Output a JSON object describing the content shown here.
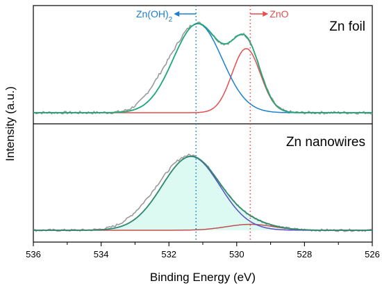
{
  "chart_data": {
    "type": "line",
    "xlabel": "Binding Energy (eV)",
    "ylabel": "Intensity (a.u.)",
    "xlim": [
      536,
      526
    ],
    "x_reversed": true,
    "x_ticks": [
      "536",
      "534",
      "532",
      "530",
      "528",
      "526"
    ],
    "y_ticks_shown": false,
    "grid": false,
    "colors": {
      "raw": "#9a9a9a",
      "envelope": "#1faa78",
      "zn_oh2": "#1a7fd0",
      "zno": "#e84c4c",
      "nanowire_peak": "#5a4fc8",
      "nanowire_minor": "#c0504d",
      "nanowire_fill": "#c5f5e9",
      "nanowire_envelope": "#2e8b6e"
    },
    "reference_lines": [
      {
        "label": "Zn(OH)",
        "subscript": "2",
        "x": 531.2,
        "color": "#1a7fd0",
        "arrow": "left"
      },
      {
        "label": "ZnO",
        "x": 529.6,
        "color": "#e84c4c",
        "arrow": "right"
      }
    ],
    "panels": [
      {
        "title": "Zn foil",
        "components": [
          {
            "role": "Zn(OH)2 component",
            "center": 531.15,
            "height": 1.0,
            "sigma": 0.72
          },
          {
            "role": "ZnO component",
            "center": 529.72,
            "height": 0.72,
            "sigma": 0.42
          }
        ],
        "baseline": 0.0,
        "raw_shoulder": {
          "center": 532.3,
          "height": 0.14,
          "sigma": 0.45
        }
      },
      {
        "title": "Zn nanowires",
        "components": [
          {
            "role": "Zn(OH)2 component",
            "center": 531.35,
            "height": 1.0,
            "sigma": 0.85
          },
          {
            "role": "ZnO component",
            "center": 529.6,
            "height": 0.08,
            "sigma": 0.7
          }
        ],
        "baseline": 0.0,
        "raw_shoulder": {
          "center": 532.6,
          "height": 0.12,
          "sigma": 0.6
        }
      }
    ]
  }
}
